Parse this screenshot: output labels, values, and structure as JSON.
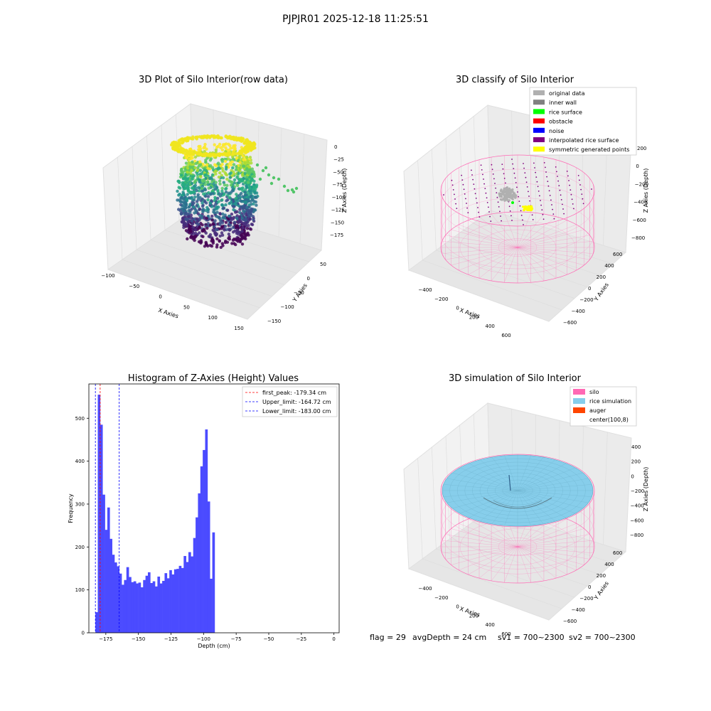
{
  "figure_title": "PJPJR01 2025-12-18 11:25:51",
  "status": {
    "flag": "flag = 29",
    "avg_depth": "avgDepth = 24 cm",
    "sv1": "sv1 = 700~2300",
    "sv2": "sv2 = 700~2300"
  },
  "colors": {
    "pane": "#f2f2f2",
    "grid": "#dcdcdc",
    "hist_bar": "#4b4bff",
    "peak_line": "#ff0000",
    "limit_line": "#0000ff",
    "silo": "#ff69b4",
    "rice_sim": "#87ceeb",
    "auger": "#ff4500",
    "original": "#b0b0b0",
    "inner_wall": "#808080",
    "rice_surface": "#00ff00",
    "obstacle": "#ff0000",
    "noise": "#0000ff",
    "interp": "#800080",
    "symmetric": "#ffff00"
  },
  "chart_data": [
    {
      "type": "scatter",
      "subtype": "3d",
      "title": "3D Plot of Silo Interior(row data)",
      "xlabel": "X Axies",
      "ylabel": "Y Axies",
      "zlabel": "Z Axies (Depth)",
      "x_ticks": [
        "−100",
        "−50",
        "0",
        "50",
        "100",
        "150"
      ],
      "y_ticks": [
        "−150",
        "−100",
        "−50",
        "0",
        "50"
      ],
      "z_ticks": [
        "0",
        "−25",
        "−50",
        "−75",
        "−100",
        "−125",
        "−150",
        "−175"
      ],
      "xlim": [
        -100,
        150
      ],
      "ylim": [
        -150,
        60
      ],
      "zlim": [
        -185,
        5
      ],
      "colormap": "viridis"
    },
    {
      "type": "scatter",
      "subtype": "3d",
      "title": "3D classify of Silo Interior",
      "xlabel": "X Axies",
      "ylabel": "Y Axies",
      "zlabel": "Z Axies (Depth)",
      "x_ticks": [
        "−400",
        "−200",
        "0",
        "200",
        "400",
        "600"
      ],
      "y_ticks": [
        "−600",
        "−400",
        "−200",
        "0",
        "200",
        "400",
        "600"
      ],
      "z_ticks": [
        "200",
        "0",
        "−200",
        "−400",
        "−600",
        "−800"
      ],
      "legend": [
        {
          "label": "original data",
          "color": "#b0b0b0"
        },
        {
          "label": "inner wall",
          "color": "#808080"
        },
        {
          "label": "rice surface",
          "color": "#00ff00"
        },
        {
          "label": "obstacle",
          "color": "#ff0000"
        },
        {
          "label": "noise",
          "color": "#0000ff"
        },
        {
          "label": "interpolated rice surface",
          "color": "#800080"
        },
        {
          "label": "symmetric generated points",
          "color": "#ffff00"
        }
      ],
      "legend_position": "top-right"
    },
    {
      "type": "bar",
      "subtype": "histogram",
      "title": "Histogram of Z-Axies (Height) Values",
      "xlabel": "Depth (cm)",
      "ylabel": "Frequency",
      "xlim": [
        -188,
        4
      ],
      "ylim": [
        0,
        580
      ],
      "x_ticks": [
        -175,
        -150,
        -125,
        -100,
        -75,
        -50,
        -25,
        0
      ],
      "x_tick_labels": [
        "−175",
        "−150",
        "−125",
        "−100",
        "−75",
        "−50",
        "−25",
        "0"
      ],
      "y_ticks": [
        0,
        100,
        200,
        300,
        400,
        500
      ],
      "y_tick_labels": [
        "0",
        "100",
        "200",
        "300",
        "400",
        "500"
      ],
      "bin_start": -183,
      "bin_width": 1.83,
      "values": [
        48,
        555,
        485,
        322,
        240,
        292,
        219,
        182,
        164,
        155,
        138,
        112,
        123,
        153,
        130,
        118,
        120,
        115,
        117,
        106,
        123,
        133,
        141,
        116,
        120,
        108,
        131,
        115,
        121,
        139,
        127,
        146,
        136,
        148,
        149,
        156,
        151,
        179,
        165,
        188,
        178,
        221,
        269,
        325,
        388,
        426,
        474,
        306,
        126,
        234
      ],
      "vlines": [
        {
          "label": "first_peak: -179.34 cm",
          "x": -179.34,
          "color": "#ff0000"
        },
        {
          "label": "Upper_limit: -164.72 cm",
          "x": -164.72,
          "color": "#0000ff"
        },
        {
          "label": "Lower_limit: -183.00 cm",
          "x": -183.0,
          "color": "#0000ff"
        }
      ],
      "legend_position": "top-right"
    },
    {
      "type": "area",
      "subtype": "3d-surface",
      "title": "3D simulation of Silo Interior",
      "xlabel": "X Axies",
      "ylabel": "Y Axies",
      "zlabel": "Z Axies (Depth)",
      "x_ticks": [
        "−400",
        "−200",
        "0",
        "200",
        "400",
        "600"
      ],
      "y_ticks": [
        "−600",
        "−400",
        "−200",
        "0",
        "200",
        "400",
        "600"
      ],
      "z_ticks": [
        "400",
        "200",
        "0",
        "−200",
        "−400",
        "−600",
        "−800"
      ],
      "legend": [
        {
          "label": "silo",
          "color": "#ff69b4"
        },
        {
          "label": "rice simulation",
          "color": "#87ceeb"
        },
        {
          "label": "auger",
          "color": "#ff4500"
        },
        {
          "label": "center(100,8)",
          "color": ""
        }
      ],
      "legend_position": "top-right"
    }
  ]
}
